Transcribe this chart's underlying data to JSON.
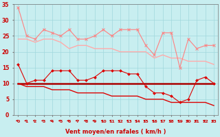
{
  "x": [
    0,
    1,
    2,
    3,
    4,
    5,
    6,
    7,
    8,
    9,
    10,
    11,
    12,
    13,
    14,
    15,
    16,
    17,
    18,
    19,
    20,
    21,
    22,
    23
  ],
  "line1_y": [
    34,
    25,
    24,
    27,
    26,
    25,
    27,
    24,
    24,
    25,
    27,
    25,
    27,
    27,
    27,
    22,
    19,
    26,
    26,
    15,
    24,
    21,
    22,
    22
  ],
  "line2_y": [
    24,
    24,
    23,
    24,
    24,
    23,
    21,
    22,
    22,
    21,
    21,
    21,
    20,
    20,
    20,
    20,
    18,
    19,
    18,
    18,
    17,
    17,
    17,
    16
  ],
  "line3_y": [
    16,
    10,
    11,
    11,
    14,
    14,
    14,
    11,
    11,
    12,
    14,
    14,
    14,
    13,
    13,
    9,
    7,
    7,
    6,
    4,
    5,
    11,
    12,
    10
  ],
  "line4_y": [
    10,
    10,
    10,
    10,
    10,
    10,
    10,
    10,
    10,
    10,
    10,
    10,
    10,
    10,
    10,
    10,
    10,
    10,
    10,
    10,
    10,
    10,
    10,
    10
  ],
  "line5_y": [
    10,
    9,
    9,
    9,
    8,
    8,
    8,
    7,
    7,
    7,
    7,
    6,
    6,
    6,
    6,
    5,
    5,
    5,
    4,
    4,
    4,
    4,
    4,
    3
  ],
  "line1_color": "#FF8080",
  "line2_color": "#FFAAAA",
  "line3_color": "#DD0000",
  "line4_color": "#AA0000",
  "line5_color": "#DD0000",
  "bg_color": "#C8EEF0",
  "grid_color": "#A0D8DC",
  "xlabel": "Vent moyen/en rafales ( km/h )",
  "ylim": [
    0,
    35
  ],
  "xlim_min": -0.5,
  "xlim_max": 23.5,
  "yticks": [
    0,
    5,
    10,
    15,
    20,
    25,
    30,
    35
  ],
  "xticks": [
    0,
    1,
    2,
    3,
    4,
    5,
    6,
    7,
    8,
    9,
    10,
    11,
    12,
    13,
    14,
    15,
    16,
    17,
    18,
    19,
    20,
    21,
    22,
    23
  ],
  "tick_color": "#CC0000",
  "xlabel_color": "#CC0000",
  "xlabel_fontsize": 6.0,
  "ytick_fontsize": 5.5,
  "xtick_fontsize": 4.5
}
